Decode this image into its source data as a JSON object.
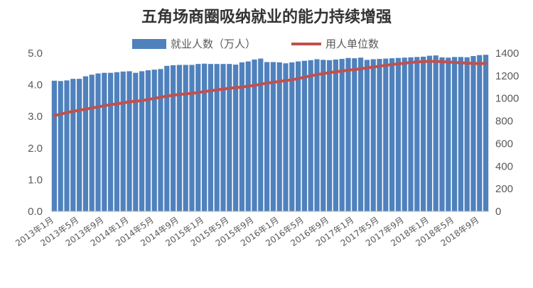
{
  "chart_data": {
    "type": "bar+line",
    "title": "五角场商圈吸纳就业的能力持续增强",
    "x": [
      "2013年1月",
      "2013年2月",
      "2013年3月",
      "2013年4月",
      "2013年5月",
      "2013年6月",
      "2013年7月",
      "2013年8月",
      "2013年9月",
      "2013年10月",
      "2013年11月",
      "2013年12月",
      "2014年1月",
      "2014年2月",
      "2014年3月",
      "2014年4月",
      "2014年5月",
      "2014年6月",
      "2014年7月",
      "2014年8月",
      "2014年9月",
      "2014年10月",
      "2014年11月",
      "2014年12月",
      "2015年1月",
      "2015年2月",
      "2015年3月",
      "2015年4月",
      "2015年5月",
      "2015年6月",
      "2015年7月",
      "2015年8月",
      "2015年9月",
      "2015年10月",
      "2015年11月",
      "2015年12月",
      "2016年1月",
      "2016年2月",
      "2016年3月",
      "2016年4月",
      "2016年5月",
      "2016年6月",
      "2016年7月",
      "2016年8月",
      "2016年9月",
      "2016年10月",
      "2016年11月",
      "2016年12月",
      "2017年1月",
      "2017年2月",
      "2017年3月",
      "2017年4月",
      "2017年5月",
      "2017年6月",
      "2017年7月",
      "2017年8月",
      "2017年9月",
      "2017年10月",
      "2017年11月",
      "2017年12月",
      "2018年1月",
      "2018年2月",
      "2018年3月",
      "2018年4月",
      "2018年5月",
      "2018年6月",
      "2018年7月",
      "2018年8月",
      "2018年9月",
      "2018年10月"
    ],
    "x_tick_labels": [
      "2013年1月",
      "2013年5月",
      "2013年9月",
      "2014年1月",
      "2014年5月",
      "2014年9月",
      "2015年1月",
      "2015年5月",
      "2015年9月",
      "2016年1月",
      "2016年5月",
      "2016年9月",
      "2017年1月",
      "2017年5月",
      "2017年9月",
      "2018年1月",
      "2018年5月",
      "2018年9月"
    ],
    "series": [
      {
        "name": "就业人数（万人）",
        "type": "bar",
        "axis": "left",
        "color": "#4F81BD",
        "values": [
          4.13,
          4.12,
          4.14,
          4.19,
          4.19,
          4.27,
          4.32,
          4.36,
          4.38,
          4.38,
          4.4,
          4.42,
          4.43,
          4.38,
          4.43,
          4.46,
          4.48,
          4.5,
          4.6,
          4.62,
          4.63,
          4.63,
          4.63,
          4.66,
          4.67,
          4.66,
          4.66,
          4.66,
          4.66,
          4.64,
          4.71,
          4.74,
          4.8,
          4.83,
          4.72,
          4.72,
          4.71,
          4.68,
          4.71,
          4.74,
          4.76,
          4.78,
          4.81,
          4.79,
          4.78,
          4.8,
          4.82,
          4.85,
          4.84,
          4.86,
          4.79,
          4.81,
          4.82,
          4.83,
          4.84,
          4.85,
          4.86,
          4.87,
          4.88,
          4.89,
          4.92,
          4.93,
          4.87,
          4.86,
          4.88,
          4.88,
          4.87,
          4.91,
          4.94,
          4.95
        ]
      },
      {
        "name": "用人单位数",
        "type": "line",
        "axis": "right",
        "color": "#C0504D",
        "values": [
          848,
          860,
          875,
          885,
          895,
          905,
          915,
          925,
          935,
          945,
          952,
          960,
          970,
          975,
          980,
          990,
          1000,
          1010,
          1020,
          1028,
          1035,
          1040,
          1045,
          1052,
          1060,
          1068,
          1075,
          1082,
          1090,
          1095,
          1100,
          1108,
          1115,
          1125,
          1135,
          1142,
          1150,
          1158,
          1165,
          1175,
          1188,
          1200,
          1210,
          1220,
          1228,
          1235,
          1242,
          1250,
          1255,
          1262,
          1270,
          1278,
          1285,
          1292,
          1300,
          1306,
          1312,
          1318,
          1322,
          1326,
          1328,
          1328,
          1325,
          1322,
          1318,
          1315,
          1312,
          1310,
          1308,
          1310
        ]
      }
    ],
    "y_left": {
      "min": 0,
      "max": 5,
      "ticks": [
        "0.0",
        "1.0",
        "2.0",
        "3.0",
        "4.0",
        "5.0"
      ]
    },
    "y_right": {
      "min": 0,
      "max": 1400,
      "ticks": [
        "0",
        "200",
        "400",
        "600",
        "800",
        "1000",
        "1200",
        "1400"
      ]
    },
    "legend_position": "top-center",
    "grid": false
  }
}
